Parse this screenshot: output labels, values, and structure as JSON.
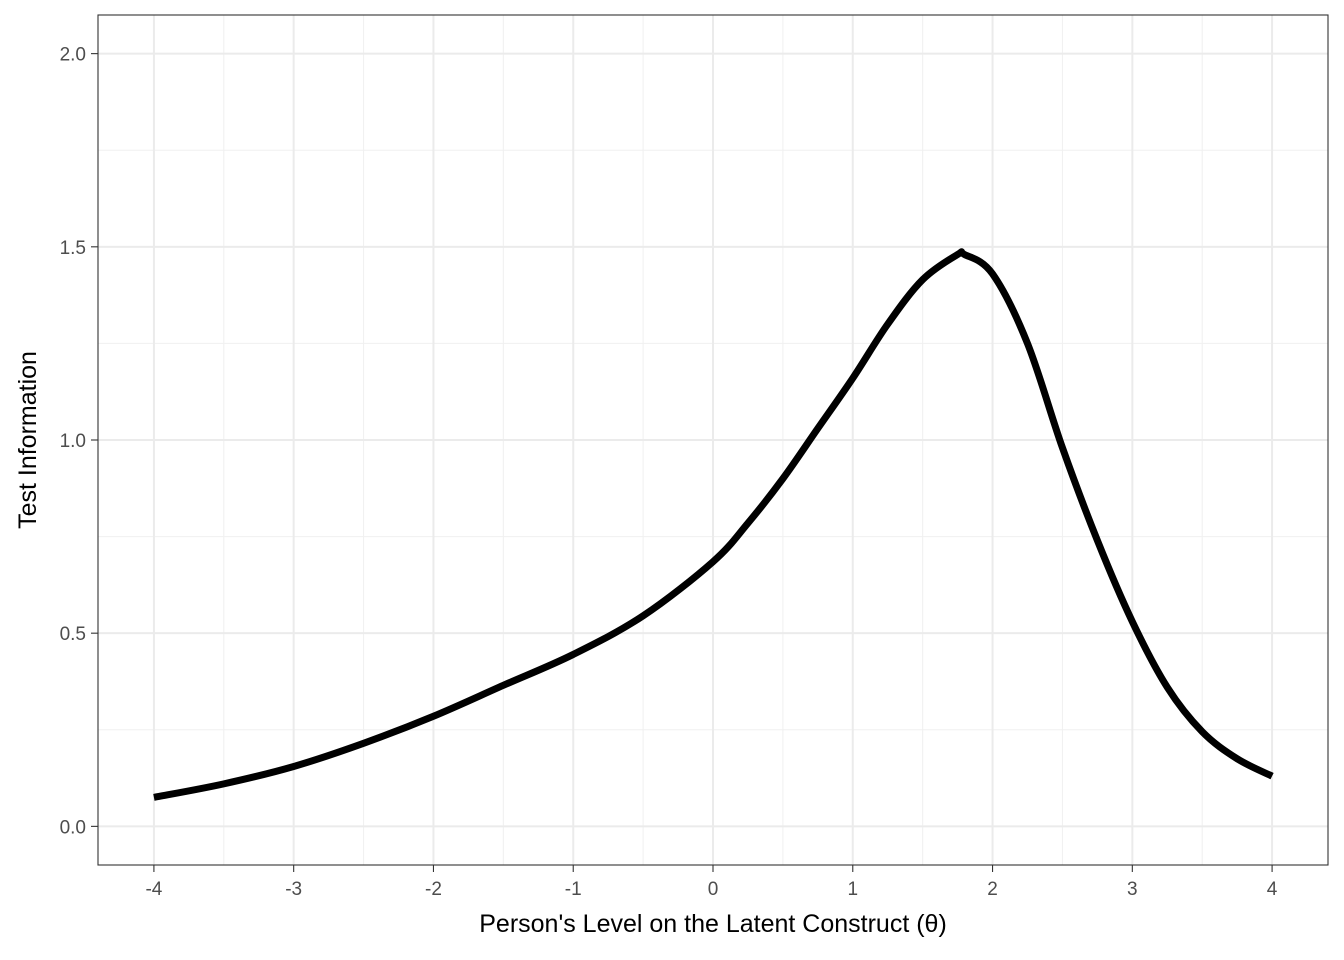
{
  "chart_data": {
    "type": "line",
    "title": "",
    "xlabel": "Person's Level on the Latent Construct (θ)",
    "ylabel": "Test Information",
    "xlim": [
      -4.4,
      4.4
    ],
    "ylim": [
      -0.1,
      2.1
    ],
    "x_ticks": [
      -4,
      -3,
      -2,
      -1,
      0,
      1,
      2,
      3,
      4
    ],
    "x_tick_labels": [
      "-4",
      "-3",
      "-2",
      "-1",
      "0",
      "1",
      "2",
      "3",
      "4"
    ],
    "y_ticks": [
      0.0,
      0.5,
      1.0,
      1.5,
      2.0
    ],
    "y_tick_labels": [
      "0.0",
      "0.5",
      "1.0",
      "1.5",
      "2.0"
    ],
    "grid": true,
    "legend": "none",
    "line_color": "#000000",
    "series": [
      {
        "x": [
          -4.0,
          -3.5,
          -3.0,
          -2.5,
          -2.0,
          -1.5,
          -1.0,
          -0.5,
          0.0,
          0.25,
          0.5,
          0.75,
          1.0,
          1.25,
          1.5,
          1.75,
          1.8,
          2.0,
          2.25,
          2.5,
          2.75,
          3.0,
          3.25,
          3.5,
          3.75,
          4.0
        ],
        "y": [
          0.075,
          0.11,
          0.155,
          0.215,
          0.285,
          0.365,
          0.445,
          0.545,
          0.685,
          0.785,
          0.9,
          1.03,
          1.16,
          1.3,
          1.415,
          1.48,
          1.48,
          1.43,
          1.25,
          0.98,
          0.74,
          0.53,
          0.36,
          0.245,
          0.175,
          0.13
        ]
      }
    ]
  }
}
